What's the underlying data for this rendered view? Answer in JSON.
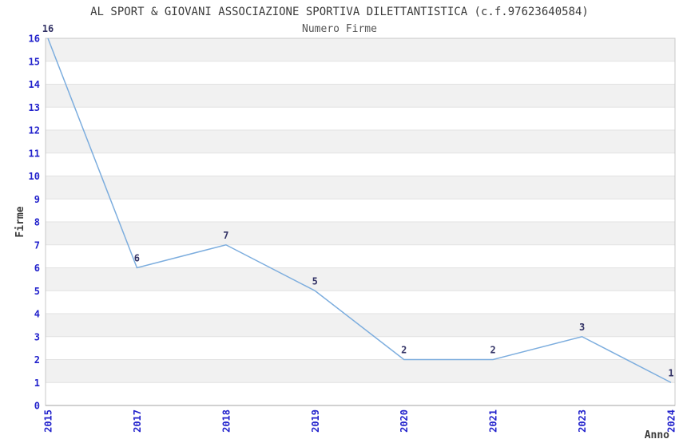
{
  "figure": {
    "title": "AL SPORT & GIOVANI ASSOCIAZIONE SPORTIVA DILETTANTISTICA (c.f.97623640584)",
    "subtitle": "Numero Firme"
  },
  "chart_data": {
    "type": "line",
    "title": "AL SPORT & GIOVANI ASSOCIAZIONE SPORTIVA DILETTANTISTICA (c.f.97623640584)",
    "subtitle": "Numero Firme",
    "xlabel": "Anno",
    "ylabel": "Firme",
    "categories": [
      "2015",
      "2017",
      "2018",
      "2019",
      "2020",
      "2021",
      "2023",
      "2024"
    ],
    "values": [
      16,
      6,
      7,
      5,
      2,
      2,
      3,
      1
    ],
    "point_labels": [
      "16",
      "6",
      "7",
      "5",
      "2",
      "2",
      "3",
      "1"
    ],
    "y_tick_labels": [
      "0",
      "1",
      "2",
      "3",
      "4",
      "5",
      "6",
      "7",
      "8",
      "9",
      "10",
      "11",
      "12",
      "13",
      "14",
      "15",
      "16"
    ],
    "ylim": [
      0,
      16
    ],
    "legend": "none",
    "grid": "horizontal-bands-alternating",
    "x_tick_rotation_deg": 90,
    "colors": {
      "line": "#7cadde",
      "tick_label": "#2222cc",
      "point_label": "#333366",
      "band_fill": "#f1f1f1",
      "gridline": "#e2e2e2",
      "frame": "#c8c8c8",
      "bottom_axis": "#a3a3a3",
      "title_text": "#3a3a3a"
    }
  }
}
